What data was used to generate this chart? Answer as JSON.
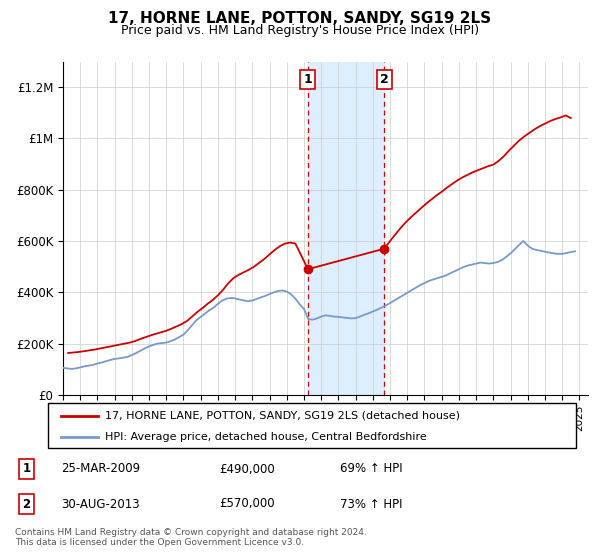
{
  "title": "17, HORNE LANE, POTTON, SANDY, SG19 2LS",
  "subtitle": "Price paid vs. HM Land Registry's House Price Index (HPI)",
  "ylabel_ticks": [
    "£0",
    "£200K",
    "£400K",
    "£600K",
    "£800K",
    "£1M",
    "£1.2M"
  ],
  "ytick_vals": [
    0,
    200000,
    400000,
    600000,
    800000,
    1000000,
    1200000
  ],
  "ylim": [
    0,
    1300000
  ],
  "xlim_start": 1995.0,
  "xlim_end": 2025.5,
  "sale1_x": 2009.23,
  "sale1_y": 490000,
  "sale1_label": "1",
  "sale1_date": "25-MAR-2009",
  "sale1_price": "£490,000",
  "sale1_hpi": "69% ↑ HPI",
  "sale2_x": 2013.66,
  "sale2_y": 570000,
  "sale2_label": "2",
  "sale2_date": "30-AUG-2013",
  "sale2_price": "£570,000",
  "sale2_hpi": "73% ↑ HPI",
  "shade_x1": 2009.23,
  "shade_x2": 2013.66,
  "red_color": "#cc0000",
  "blue_color": "#7799cc",
  "shade_color": "#ddeeff",
  "legend_label_red": "17, HORNE LANE, POTTON, SANDY, SG19 2LS (detached house)",
  "legend_label_blue": "HPI: Average price, detached house, Central Bedfordshire",
  "footer": "Contains HM Land Registry data © Crown copyright and database right 2024.\nThis data is licensed under the Open Government Licence v3.0.",
  "hpi_years": [
    1995.0,
    1995.25,
    1995.5,
    1995.75,
    1996.0,
    1996.25,
    1996.5,
    1996.75,
    1997.0,
    1997.25,
    1997.5,
    1997.75,
    1998.0,
    1998.25,
    1998.5,
    1998.75,
    1999.0,
    1999.25,
    1999.5,
    1999.75,
    2000.0,
    2000.25,
    2000.5,
    2000.75,
    2001.0,
    2001.25,
    2001.5,
    2001.75,
    2002.0,
    2002.25,
    2002.5,
    2002.75,
    2003.0,
    2003.25,
    2003.5,
    2003.75,
    2004.0,
    2004.25,
    2004.5,
    2004.75,
    2005.0,
    2005.25,
    2005.5,
    2005.75,
    2006.0,
    2006.25,
    2006.5,
    2006.75,
    2007.0,
    2007.25,
    2007.5,
    2007.75,
    2008.0,
    2008.25,
    2008.5,
    2008.75,
    2009.0,
    2009.25,
    2009.5,
    2009.75,
    2010.0,
    2010.25,
    2010.5,
    2010.75,
    2011.0,
    2011.25,
    2011.5,
    2011.75,
    2012.0,
    2012.25,
    2012.5,
    2012.75,
    2013.0,
    2013.25,
    2013.5,
    2013.75,
    2014.0,
    2014.25,
    2014.5,
    2014.75,
    2015.0,
    2015.25,
    2015.5,
    2015.75,
    2016.0,
    2016.25,
    2016.5,
    2016.75,
    2017.0,
    2017.25,
    2017.5,
    2017.75,
    2018.0,
    2018.25,
    2018.5,
    2018.75,
    2019.0,
    2019.25,
    2019.5,
    2019.75,
    2020.0,
    2020.25,
    2020.5,
    2020.75,
    2021.0,
    2021.25,
    2021.5,
    2021.75,
    2022.0,
    2022.25,
    2022.5,
    2022.75,
    2023.0,
    2023.25,
    2023.5,
    2023.75,
    2024.0,
    2024.25,
    2024.5,
    2024.75
  ],
  "hpi_values": [
    105000,
    103000,
    101000,
    103000,
    107000,
    111000,
    114000,
    117000,
    122000,
    126000,
    131000,
    136000,
    140000,
    142000,
    145000,
    148000,
    155000,
    163000,
    172000,
    181000,
    189000,
    195000,
    200000,
    202000,
    204000,
    209000,
    216000,
    225000,
    235000,
    252000,
    272000,
    291000,
    304000,
    317000,
    330000,
    340000,
    355000,
    368000,
    375000,
    378000,
    376000,
    372000,
    368000,
    365000,
    368000,
    374000,
    380000,
    386000,
    393000,
    400000,
    405000,
    407000,
    403000,
    392000,
    375000,
    353000,
    335000,
    295000,
    293000,
    298000,
    305000,
    310000,
    308000,
    305000,
    304000,
    302000,
    300000,
    298000,
    299000,
    305000,
    312000,
    318000,
    325000,
    332000,
    340000,
    348000,
    358000,
    368000,
    378000,
    388000,
    398000,
    408000,
    418000,
    428000,
    436000,
    444000,
    450000,
    455000,
    460000,
    466000,
    474000,
    482000,
    490000,
    498000,
    504000,
    508000,
    512000,
    516000,
    514000,
    512000,
    514000,
    518000,
    526000,
    538000,
    552000,
    568000,
    585000,
    600000,
    582000,
    570000,
    565000,
    562000,
    558000,
    555000,
    552000,
    550000,
    550000,
    553000,
    557000,
    560000
  ],
  "pp_years": [
    1995.3,
    1995.6,
    1995.9,
    1996.2,
    1996.5,
    1996.8,
    1997.1,
    1997.4,
    1997.7,
    1998.0,
    1998.3,
    1998.6,
    1998.9,
    1999.2,
    1999.5,
    1999.8,
    2000.1,
    2000.4,
    2000.7,
    2001.0,
    2001.3,
    2001.6,
    2001.9,
    2002.2,
    2002.5,
    2002.8,
    2003.1,
    2003.4,
    2003.7,
    2004.0,
    2004.3,
    2004.6,
    2004.9,
    2005.2,
    2005.5,
    2005.8,
    2006.1,
    2006.4,
    2006.7,
    2007.0,
    2007.3,
    2007.6,
    2007.9,
    2008.2,
    2008.5,
    2009.23,
    2013.66,
    2014.0,
    2014.3,
    2014.6,
    2014.9,
    2015.2,
    2015.5,
    2015.8,
    2016.1,
    2016.4,
    2016.7,
    2017.0,
    2017.3,
    2017.6,
    2017.9,
    2018.2,
    2018.5,
    2018.8,
    2019.1,
    2019.4,
    2019.7,
    2020.0,
    2020.3,
    2020.6,
    2020.9,
    2021.2,
    2021.5,
    2021.8,
    2022.1,
    2022.4,
    2022.7,
    2023.0,
    2023.3,
    2023.6,
    2023.9,
    2024.2,
    2024.5
  ],
  "pp_values": [
    163000,
    165000,
    167000,
    170000,
    173000,
    176000,
    180000,
    184000,
    188000,
    192000,
    196000,
    200000,
    204000,
    210000,
    218000,
    225000,
    232000,
    238000,
    244000,
    250000,
    258000,
    267000,
    276000,
    288000,
    305000,
    323000,
    338000,
    355000,
    370000,
    388000,
    410000,
    435000,
    455000,
    468000,
    478000,
    488000,
    500000,
    515000,
    530000,
    548000,
    565000,
    580000,
    590000,
    594000,
    590000,
    490000,
    570000,
    600000,
    625000,
    650000,
    672000,
    692000,
    710000,
    728000,
    746000,
    762000,
    778000,
    792000,
    808000,
    822000,
    836000,
    848000,
    858000,
    868000,
    876000,
    884000,
    892000,
    898000,
    912000,
    930000,
    952000,
    972000,
    992000,
    1008000,
    1022000,
    1036000,
    1048000,
    1058000,
    1068000,
    1076000,
    1082000,
    1090000,
    1080000
  ]
}
